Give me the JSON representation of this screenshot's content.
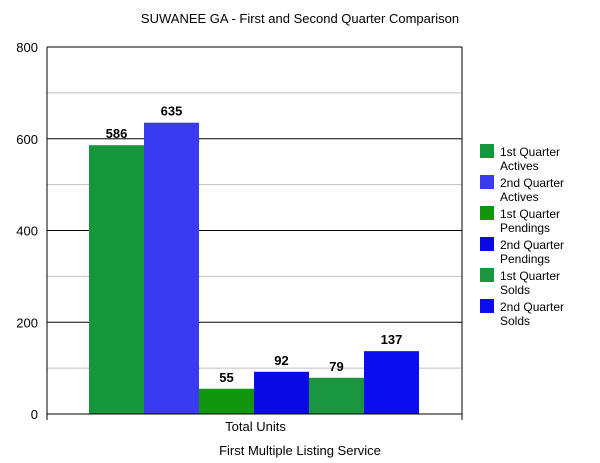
{
  "chart_data": {
    "type": "bar",
    "title": "SUWANEE GA - First and Second  Quarter Comparison",
    "xlabel": "First Multiple Listing Service",
    "ylabel": "",
    "categories": [
      "Total Units"
    ],
    "ylim": [
      0,
      800
    ],
    "yticks": [
      0,
      200,
      400,
      600,
      800
    ],
    "grid": true,
    "legend_position": "right",
    "series": [
      {
        "name": "1st Quarter Actives",
        "legend_lines": [
          "1st Quarter",
          "Actives"
        ],
        "values": [
          586
        ],
        "color": "#16963a"
      },
      {
        "name": "2nd Quarter Actives",
        "legend_lines": [
          "2nd Quarter",
          "Actives"
        ],
        "values": [
          635
        ],
        "color": "#3a3af0"
      },
      {
        "name": "1st Quarter Pendings",
        "legend_lines": [
          "1st Quarter",
          "Pendings"
        ],
        "values": [
          55
        ],
        "color": "#12960e"
      },
      {
        "name": "2nd Quarter Pendings",
        "legend_lines": [
          "2nd Quarter",
          "Pendings"
        ],
        "values": [
          92
        ],
        "color": "#0a0ae6"
      },
      {
        "name": "1st Quarter Solds",
        "legend_lines": [
          "1st Quarter",
          "Solds"
        ],
        "values": [
          79
        ],
        "color": "#1a9640"
      },
      {
        "name": "2nd Quarter Solds",
        "legend_lines": [
          "2nd Quarter",
          "Solds"
        ],
        "values": [
          137
        ],
        "color": "#0c0cf0"
      }
    ]
  }
}
